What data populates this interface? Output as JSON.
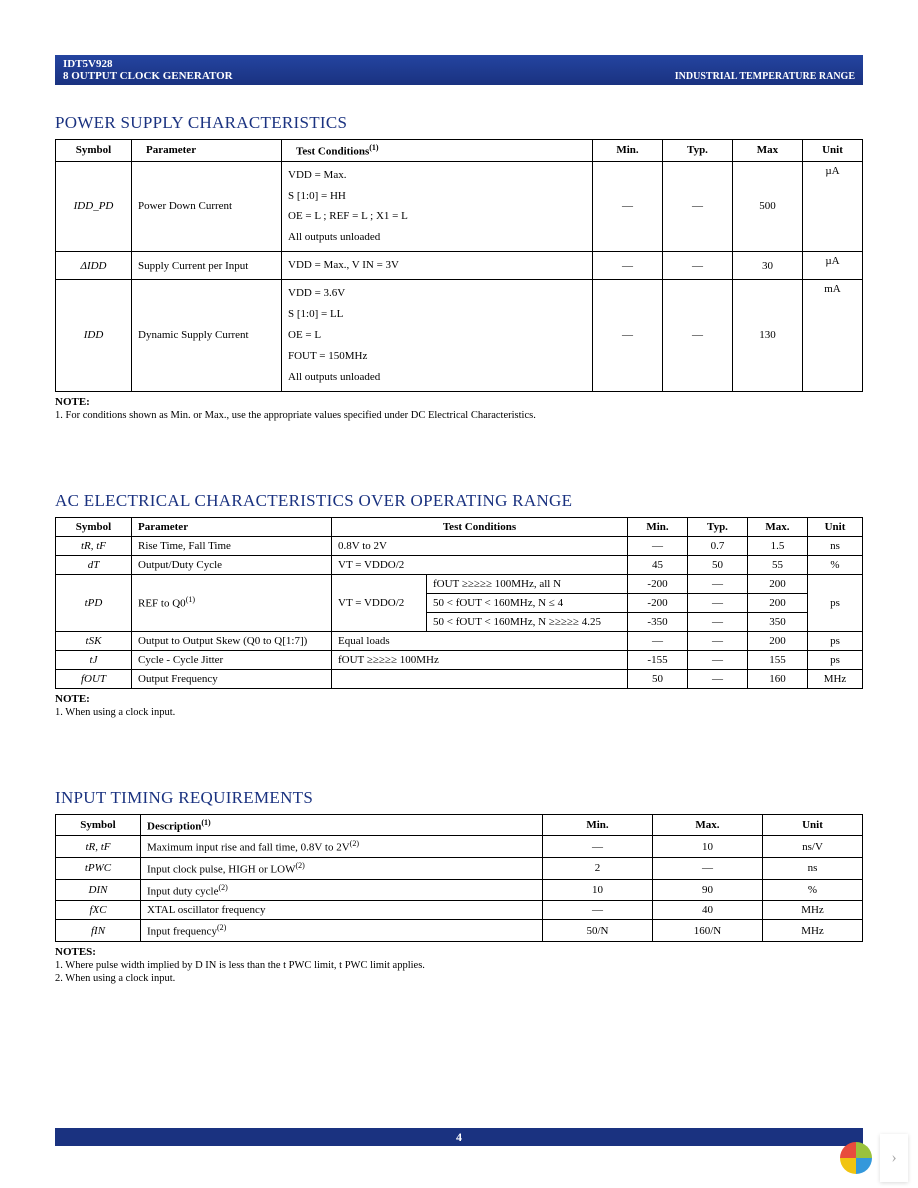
{
  "header": {
    "part": "IDT5V928",
    "subtitle": "8 OUTPUT CLOCK GENERATOR",
    "right": "INDUSTRIAL TEMPERATURE RANGE"
  },
  "section1": {
    "title": "POWER SUPPLY CHARACTERISTICS",
    "cols": [
      "Symbol",
      "Parameter",
      "Test Conditions",
      "Min.",
      "Typ.",
      "Max",
      "Unit"
    ],
    "cond_sup": "(1)",
    "rows": [
      {
        "symbol": "IDD_PD",
        "parameter": "Power Down Current",
        "conditions": [
          "VDD = Max.",
          "S [1:0] = HH",
          "OE = L ; REF = L ; X1 = L",
          "All outputs unloaded"
        ],
        "min": "—",
        "typ": "—",
        "max": "500",
        "unit": "µA"
      },
      {
        "symbol": "ΔIDD",
        "parameter": "Supply Current per Input",
        "conditions": [
          "VDD = Max., V IN = 3V"
        ],
        "min": "—",
        "typ": "—",
        "max": "30",
        "unit": "µA"
      },
      {
        "symbol": "IDD",
        "parameter": "Dynamic Supply Current",
        "conditions": [
          "VDD = 3.6V",
          "S [1:0] = LL",
          "OE = L",
          "FOUT = 150MHz",
          "All outputs unloaded"
        ],
        "min": "—",
        "typ": "—",
        "max": "130",
        "unit": "mA"
      }
    ],
    "note_head": "NOTE:",
    "note": "1. For conditions shown as Min. or Max., use the appropriate values specified under DC Electrical Characteristics."
  },
  "section2": {
    "title": "AC ELECTRICAL CHARACTERISTICS OVER OPERATING RANGE",
    "cols": [
      "Symbol",
      "Parameter",
      "Test Conditions",
      "Min.",
      "Typ.",
      "Max.",
      "Unit"
    ],
    "rows_simple": [
      {
        "symbol": "tR, tF",
        "parameter": "Rise Time, Fall Time",
        "cond": "0.8V to 2V",
        "min": "—",
        "typ": "0.7",
        "max": "1.5",
        "unit": "ns"
      },
      {
        "symbol": "dT",
        "parameter": "Output/Duty Cycle",
        "cond": "VT = VDDO/2",
        "min": "45",
        "typ": "50",
        "max": "55",
        "unit": "%"
      }
    ],
    "tpd": {
      "symbol": "tPD",
      "parameter": "REF to Q0",
      "param_sup": "(1)",
      "cond_left": "VT = VDDO/2",
      "sub": [
        {
          "cond": "fOUT ≥≥≥≥≥ 100MHz, all N",
          "min": "-200",
          "typ": "—",
          "max": "200"
        },
        {
          "cond": "50 < fOUT < 160MHz, N ≤ 4",
          "min": "-200",
          "typ": "—",
          "max": "200"
        },
        {
          "cond": "50 < fOUT < 160MHz, N ≥≥≥≥≥ 4.25",
          "min": "-350",
          "typ": "—",
          "max": "350"
        }
      ],
      "unit": "ps"
    },
    "rows_after": [
      {
        "symbol": "tSK",
        "parameter": "Output to Output Skew (Q0 to Q[1:7])",
        "cond": "Equal loads",
        "min": "—",
        "typ": "—",
        "max": "200",
        "unit": "ps"
      },
      {
        "symbol": "tJ",
        "parameter": "Cycle - Cycle Jitter",
        "cond": "fOUT ≥≥≥≥≥ 100MHz",
        "min": "-155",
        "typ": "—",
        "max": "155",
        "unit": "ps"
      },
      {
        "symbol": "fOUT",
        "parameter": "Output Frequency",
        "cond": "",
        "min": "50",
        "typ": "—",
        "max": "160",
        "unit": "MHz"
      }
    ],
    "note_head": "NOTE:",
    "note": "1. When using a clock input."
  },
  "section3": {
    "title": "INPUT TIMING REQUIREMENTS",
    "cols": [
      "Symbol",
      "Description",
      "Min.",
      "Max.",
      "Unit"
    ],
    "desc_sup": "(1)",
    "rows": [
      {
        "symbol": "tR, tF",
        "desc": "Maximum input rise and fall time, 0.8V to 2V",
        "sup": "(2)",
        "min": "—",
        "max": "10",
        "unit": "ns/V"
      },
      {
        "symbol": "tPWC",
        "desc": "Input clock pulse, HIGH or LOW",
        "sup": "(2)",
        "min": "2",
        "max": "—",
        "unit": "ns"
      },
      {
        "symbol": "DIN",
        "desc": "Input duty cycle",
        "sup": "(2)",
        "min": "10",
        "max": "90",
        "unit": "%"
      },
      {
        "symbol": "fXC",
        "desc": "XTAL oscillator frequency",
        "sup": "",
        "min": "—",
        "max": "40",
        "unit": "MHz"
      },
      {
        "symbol": "fIN",
        "desc": "Input frequency",
        "sup": "(2)",
        "min": "50/N",
        "max": "160/N",
        "unit": "MHz"
      }
    ],
    "note_head": "NOTES:",
    "note1": "1. Where pulse width implied by D    IN is less than the t    PWC limit, t PWC limit applies.",
    "note2": "2. When using a clock input."
  },
  "footer": {
    "page": "4"
  },
  "colors": {
    "bar": "#1a3280",
    "title": "#1a3280",
    "petals": [
      "#e84c3d",
      "#9ac23c",
      "#f1c40f",
      "#3498db"
    ]
  }
}
